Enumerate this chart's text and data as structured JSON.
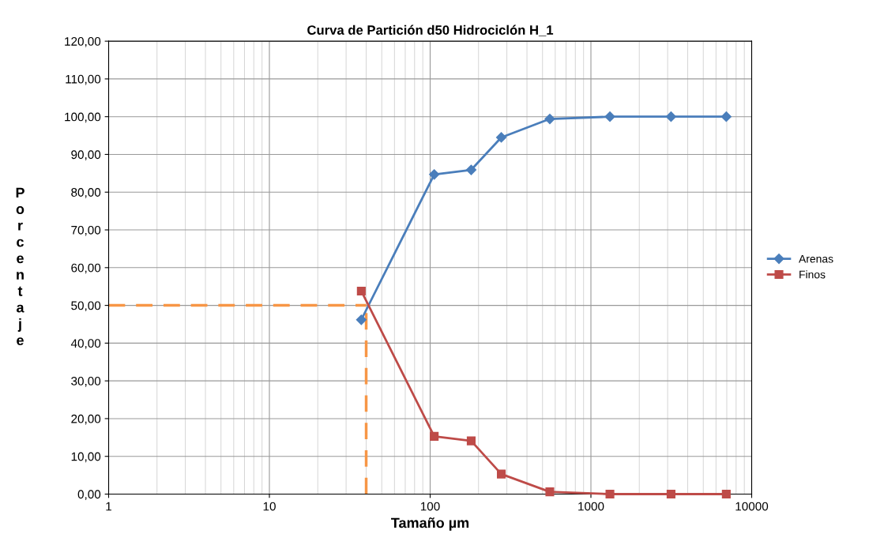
{
  "chart_data": {
    "type": "line",
    "title": "Curva de Partición d50 Hidrociclón H_1",
    "xlabel": "Tamaño µm",
    "ylabel": "Porcentaje",
    "log": "x",
    "xlim": [
      1,
      10000
    ],
    "xticks": [
      1,
      10,
      100,
      1000,
      10000
    ],
    "ylim": [
      0,
      120
    ],
    "yticks": [
      {
        "value": 0,
        "label": "0,00"
      },
      {
        "value": 10,
        "label": "10,00"
      },
      {
        "value": 20,
        "label": "20,00"
      },
      {
        "value": 30,
        "label": "30,00"
      },
      {
        "value": 40,
        "label": "40,00"
      },
      {
        "value": 50,
        "label": "50,00"
      },
      {
        "value": 60,
        "label": "60,00"
      },
      {
        "value": 70,
        "label": "70,00"
      },
      {
        "value": 80,
        "label": "80,00"
      },
      {
        "value": 90,
        "label": "90,00"
      },
      {
        "value": 100,
        "label": "100,00"
      },
      {
        "value": 110,
        "label": "110,00"
      },
      {
        "value": 120,
        "label": "120,00"
      }
    ],
    "grid": true,
    "legend": "right",
    "line_style": "solid",
    "x": [
      37.3,
      106,
      180,
      277,
      555,
      1313,
      3150,
      6950
    ],
    "series": [
      {
        "name": "Arenas",
        "color": "#4a7ebb",
        "marker": "diamond",
        "values": [
          46.2,
          84.7,
          85.9,
          94.5,
          99.4,
          100,
          100,
          100
        ]
      },
      {
        "name": "Finos",
        "color": "#be4b48",
        "marker": "square",
        "values": [
          53.8,
          15.3,
          14.1,
          5.3,
          0.6,
          0,
          0,
          0
        ]
      }
    ],
    "ref_lines": [
      {
        "axis": "y",
        "value": 50,
        "color": "#f79646",
        "line_style": "dashed"
      },
      {
        "axis": "x",
        "value": 40,
        "color": "#f79646",
        "line_style": "dashed"
      }
    ]
  }
}
